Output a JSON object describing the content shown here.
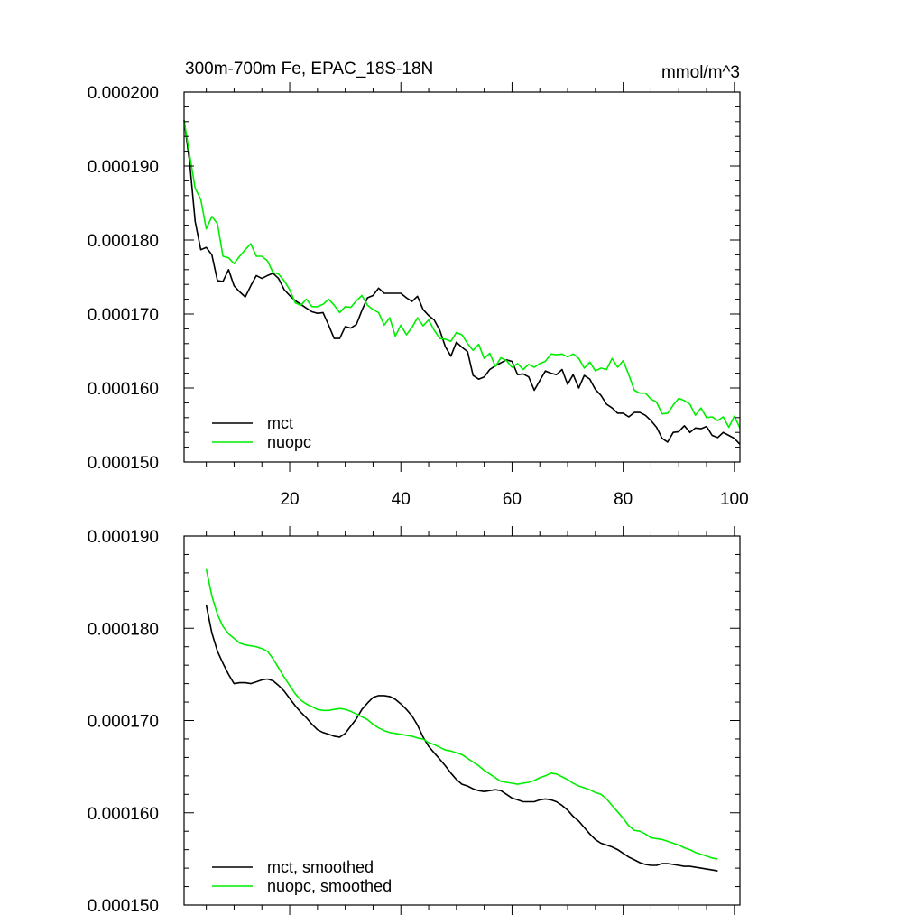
{
  "chart_data": [
    {
      "type": "line",
      "title": "300m-700m Fe, EPAC_18S-18N",
      "units": "mmol/m^3",
      "xlabel": "",
      "ylabel": "",
      "xlim": [
        1,
        101
      ],
      "ylim": [
        0.00015,
        0.0002
      ],
      "yticks": [
        "0.000150",
        "0.000160",
        "0.000170",
        "0.000180",
        "0.000190",
        "0.000200"
      ],
      "ytick_values": [
        0.00015,
        0.00016,
        0.00017,
        0.00018,
        0.00019,
        0.0002
      ],
      "xticks": [
        "20",
        "40",
        "60",
        "80",
        "100"
      ],
      "xtick_values": [
        20,
        40,
        60,
        80,
        100
      ],
      "show_xtick_labels": true,
      "legend_position": "bottom-left",
      "series": [
        {
          "name": "mct",
          "color": "#000000",
          "x": [
            1,
            2,
            3,
            4,
            5,
            6,
            7,
            8,
            9,
            10,
            11,
            12,
            13,
            14,
            15,
            16,
            17,
            18,
            19,
            20,
            21,
            22,
            23,
            24,
            25,
            26,
            27,
            28,
            29,
            30,
            31,
            32,
            33,
            34,
            35,
            36,
            37,
            38,
            39,
            40,
            41,
            42,
            43,
            44,
            45,
            46,
            47,
            48,
            49,
            50,
            51,
            52,
            53,
            54,
            55,
            56,
            57,
            58,
            59,
            60,
            61,
            62,
            63,
            64,
            65,
            66,
            67,
            68,
            69,
            70,
            71,
            72,
            73,
            74,
            75,
            76,
            77,
            78,
            79,
            80,
            81,
            82,
            83,
            84,
            85,
            86,
            87,
            88,
            89,
            90,
            91,
            92,
            93,
            94,
            95,
            96,
            97,
            98,
            99,
            100,
            101
          ],
          "values": [
            0.0001962,
            0.0001905,
            0.0001825,
            0.0001787,
            0.000179,
            0.000178,
            0.0001745,
            0.0001744,
            0.000176,
            0.0001738,
            0.000173,
            0.0001723,
            0.0001738,
            0.0001752,
            0.0001748,
            0.0001752,
            0.0001755,
            0.0001748,
            0.0001733,
            0.0001725,
            0.0001718,
            0.0001713,
            0.0001708,
            0.0001703,
            0.0001701,
            0.0001702,
            0.0001685,
            0.0001667,
            0.0001667,
            0.0001683,
            0.0001681,
            0.0001686,
            0.0001705,
            0.0001722,
            0.0001725,
            0.0001735,
            0.0001728,
            0.0001728,
            0.0001728,
            0.0001728,
            0.0001722,
            0.0001717,
            0.0001724,
            0.0001706,
            0.0001698,
            0.0001692,
            0.0001678,
            0.0001656,
            0.0001643,
            0.0001662,
            0.0001655,
            0.0001649,
            0.0001617,
            0.0001612,
            0.0001615,
            0.0001625,
            0.000163,
            0.0001634,
            0.0001638,
            0.0001636,
            0.0001618,
            0.0001619,
            0.0001615,
            0.0001597,
            0.000161,
            0.0001623,
            0.000162,
            0.0001618,
            0.0001625,
            0.0001605,
            0.0001618,
            0.00016,
            0.0001617,
            0.0001612,
            0.0001598,
            0.000159,
            0.0001578,
            0.0001573,
            0.0001566,
            0.0001566,
            0.0001561,
            0.0001567,
            0.0001567,
            0.0001563,
            0.0001556,
            0.0001547,
            0.0001532,
            0.0001527,
            0.000154,
            0.0001541,
            0.0001549,
            0.000154,
            0.0001546,
            0.0001545,
            0.0001548,
            0.0001536,
            0.0001533,
            0.000154,
            0.0001536,
            0.0001532,
            0.0001524
          ]
        },
        {
          "name": "nuopc",
          "color": "#00ee00",
          "x": [
            1,
            2,
            3,
            4,
            5,
            6,
            7,
            8,
            9,
            10,
            11,
            12,
            13,
            14,
            15,
            16,
            17,
            18,
            19,
            20,
            21,
            22,
            23,
            24,
            25,
            26,
            27,
            28,
            29,
            30,
            31,
            32,
            33,
            34,
            35,
            36,
            37,
            38,
            39,
            40,
            41,
            42,
            43,
            44,
            45,
            46,
            47,
            48,
            49,
            50,
            51,
            52,
            53,
            54,
            55,
            56,
            57,
            58,
            59,
            60,
            61,
            62,
            63,
            64,
            65,
            66,
            67,
            68,
            69,
            70,
            71,
            72,
            73,
            74,
            75,
            76,
            77,
            78,
            79,
            80,
            81,
            82,
            83,
            84,
            85,
            86,
            87,
            88,
            89,
            90,
            91,
            92,
            93,
            94,
            95,
            96,
            97,
            98,
            99,
            100,
            101
          ],
          "values": [
            0.0001962,
            0.0001915,
            0.000187,
            0.0001855,
            0.0001815,
            0.0001832,
            0.0001822,
            0.0001778,
            0.0001776,
            0.0001768,
            0.0001778,
            0.0001787,
            0.0001795,
            0.0001778,
            0.0001778,
            0.0001772,
            0.0001756,
            0.0001754,
            0.0001745,
            0.0001733,
            0.0001715,
            0.0001712,
            0.000172,
            0.000171,
            0.000171,
            0.0001713,
            0.000172,
            0.0001712,
            0.0001702,
            0.000171,
            0.0001709,
            0.0001718,
            0.0001725,
            0.0001712,
            0.0001706,
            0.0001702,
            0.0001685,
            0.0001695,
            0.000167,
            0.0001685,
            0.0001672,
            0.0001682,
            0.0001695,
            0.0001684,
            0.0001692,
            0.0001678,
            0.0001667,
            0.0001666,
            0.0001663,
            0.0001675,
            0.0001672,
            0.000166,
            0.0001651,
            0.0001659,
            0.000164,
            0.0001647,
            0.0001629,
            0.0001641,
            0.0001637,
            0.0001628,
            0.0001633,
            0.0001625,
            0.0001632,
            0.0001628,
            0.0001633,
            0.0001636,
            0.0001646,
            0.0001645,
            0.0001646,
            0.0001642,
            0.0001646,
            0.000164,
            0.0001627,
            0.0001635,
            0.0001623,
            0.0001627,
            0.0001625,
            0.000164,
            0.0001628,
            0.0001637,
            0.0001618,
            0.0001597,
            0.0001593,
            0.0001593,
            0.0001585,
            0.0001581,
            0.0001565,
            0.0001566,
            0.0001577,
            0.0001586,
            0.0001583,
            0.0001578,
            0.0001563,
            0.0001573,
            0.000156,
            0.0001561,
            0.0001556,
            0.0001561,
            0.0001547,
            0.0001562,
            0.0001546
          ]
        }
      ]
    },
    {
      "type": "line",
      "title": "",
      "xlabel": "",
      "ylabel": "",
      "xlim": [
        1,
        101
      ],
      "ylim": [
        0.00015,
        0.00019
      ],
      "yticks": [
        "0.000150",
        "0.000160",
        "0.000170",
        "0.000180",
        "0.000190"
      ],
      "ytick_values": [
        0.00015,
        0.00016,
        0.00017,
        0.00018,
        0.00019
      ],
      "xtick_values": [
        20,
        40,
        60,
        80,
        100
      ],
      "show_xtick_labels": false,
      "legend_position": "bottom-left",
      "series": [
        {
          "name": "mct, smoothed",
          "color": "#000000",
          "x": [
            5,
            6,
            7,
            8,
            9,
            10,
            11,
            12,
            13,
            14,
            15,
            16,
            17,
            18,
            19,
            20,
            21,
            22,
            23,
            24,
            25,
            26,
            27,
            28,
            29,
            30,
            31,
            32,
            33,
            34,
            35,
            36,
            37,
            38,
            39,
            40,
            41,
            42,
            43,
            44,
            45,
            46,
            47,
            48,
            49,
            50,
            51,
            52,
            53,
            54,
            55,
            56,
            57,
            58,
            59,
            60,
            61,
            62,
            63,
            64,
            65,
            66,
            67,
            68,
            69,
            70,
            71,
            72,
            73,
            74,
            75,
            76,
            77,
            78,
            79,
            80,
            81,
            82,
            83,
            84,
            85,
            86,
            87,
            88,
            89,
            90,
            91,
            92,
            93,
            94,
            95,
            96,
            97
          ],
          "values": [
            0.0001825,
            0.0001795,
            0.0001775,
            0.0001762,
            0.000175,
            0.000174,
            0.0001741,
            0.0001741,
            0.000174,
            0.0001742,
            0.0001744,
            0.0001745,
            0.0001743,
            0.0001738,
            0.0001732,
            0.0001724,
            0.0001716,
            0.0001709,
            0.0001703,
            0.0001696,
            0.000169,
            0.0001687,
            0.0001685,
            0.0001683,
            0.0001682,
            0.0001686,
            0.0001694,
            0.0001702,
            0.0001712,
            0.0001719,
            0.0001725,
            0.0001727,
            0.0001727,
            0.0001726,
            0.0001723,
            0.0001718,
            0.0001712,
            0.0001705,
            0.0001695,
            0.0001682,
            0.0001672,
            0.0001665,
            0.0001658,
            0.0001651,
            0.0001643,
            0.0001636,
            0.0001631,
            0.0001629,
            0.0001626,
            0.0001624,
            0.0001623,
            0.0001624,
            0.0001625,
            0.0001624,
            0.000162,
            0.0001616,
            0.0001614,
            0.0001612,
            0.0001612,
            0.0001612,
            0.0001614,
            0.0001615,
            0.0001614,
            0.0001612,
            0.0001608,
            0.0001603,
            0.0001596,
            0.0001591,
            0.0001584,
            0.0001577,
            0.0001571,
            0.0001567,
            0.0001565,
            0.0001563,
            0.000156,
            0.0001556,
            0.0001552,
            0.0001549,
            0.0001546,
            0.0001544,
            0.0001543,
            0.0001543,
            0.0001545,
            0.0001545,
            0.0001544,
            0.0001543,
            0.0001542,
            0.0001542,
            0.0001541,
            0.000154,
            0.0001539,
            0.0001538,
            0.0001537
          ]
        },
        {
          "name": "nuopc, smoothed",
          "color": "#00ee00",
          "x": [
            5,
            6,
            7,
            8,
            9,
            10,
            11,
            12,
            13,
            14,
            15,
            16,
            17,
            18,
            19,
            20,
            21,
            22,
            23,
            24,
            25,
            26,
            27,
            28,
            29,
            30,
            31,
            32,
            33,
            34,
            35,
            36,
            37,
            38,
            39,
            40,
            41,
            42,
            43,
            44,
            45,
            46,
            47,
            48,
            49,
            50,
            51,
            52,
            53,
            54,
            55,
            56,
            57,
            58,
            59,
            60,
            61,
            62,
            63,
            64,
            65,
            66,
            67,
            68,
            69,
            70,
            71,
            72,
            73,
            74,
            75,
            76,
            77,
            78,
            79,
            80,
            81,
            82,
            83,
            84,
            85,
            86,
            87,
            88,
            89,
            90,
            91,
            92,
            93,
            94,
            95,
            96,
            97
          ],
          "values": [
            0.0001864,
            0.0001835,
            0.0001815,
            0.0001802,
            0.0001794,
            0.0001789,
            0.0001784,
            0.0001782,
            0.0001781,
            0.000178,
            0.0001778,
            0.0001775,
            0.0001767,
            0.0001757,
            0.0001747,
            0.0001738,
            0.0001729,
            0.0001722,
            0.0001718,
            0.0001715,
            0.0001712,
            0.0001711,
            0.0001711,
            0.0001712,
            0.0001713,
            0.0001712,
            0.000171,
            0.0001707,
            0.0001704,
            0.0001701,
            0.0001696,
            0.0001692,
            0.0001689,
            0.0001687,
            0.0001686,
            0.0001685,
            0.0001684,
            0.0001683,
            0.0001681,
            0.000168,
            0.0001676,
            0.0001674,
            0.0001671,
            0.0001668,
            0.0001667,
            0.0001665,
            0.0001663,
            0.0001659,
            0.0001655,
            0.0001651,
            0.0001646,
            0.0001642,
            0.0001638,
            0.0001634,
            0.0001633,
            0.0001632,
            0.0001631,
            0.0001632,
            0.0001633,
            0.0001635,
            0.0001638,
            0.000164,
            0.0001643,
            0.0001642,
            0.0001639,
            0.0001636,
            0.0001632,
            0.0001629,
            0.0001627,
            0.0001625,
            0.0001622,
            0.000162,
            0.0001615,
            0.0001608,
            0.0001601,
            0.0001594,
            0.0001586,
            0.0001581,
            0.000158,
            0.0001577,
            0.0001573,
            0.0001572,
            0.0001571,
            0.0001569,
            0.0001567,
            0.0001565,
            0.0001562,
            0.000156,
            0.0001557,
            0.0001555,
            0.0001553,
            0.0001551,
            0.000155
          ]
        }
      ]
    }
  ]
}
